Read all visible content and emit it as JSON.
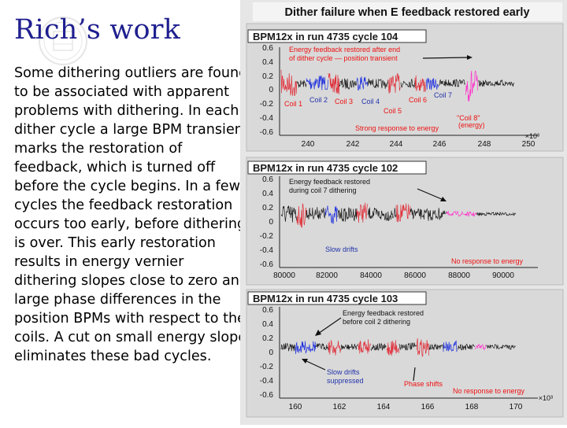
{
  "slide": {
    "title": "Rich’s work",
    "body": "Some dithering outliers are found to be associated with apparent problems with dithering. In each dither cycle a large BPM transient marks the restoration of feedback, which is turned off before the cycle begins. In a few cycles the feedback restoration occurs too early, before dithering is over. This early restoration results in energy vernier dithering slopes close to zero and large phase differences in the position BPMs with respect to the coils. A cut on small energy slope eliminates these bad cycles."
  },
  "figure": {
    "title": "Dither failure when E feedback restored early",
    "colors": {
      "black": "#1a1a1a",
      "red": "#e0303a",
      "blue": "#2233dd",
      "magenta": "#ff33cc",
      "annotation": "#ee1111",
      "annotation_blue": "#2233aa",
      "panel_bg": "#d9d9d9",
      "figure_bg": "#e6e6e6"
    },
    "panels": [
      {
        "title": "BPM12x in run 4735 cycle 104",
        "y_ticks": [
          "0.6",
          "0.4",
          "0.2",
          "0",
          "-0.2",
          "-0.4",
          "-0.6"
        ],
        "x_ticks": [
          "240",
          "242",
          "244",
          "246",
          "248",
          "250"
        ],
        "x_exponent": "×10³",
        "annotations": {
          "main_line1": "Energy feedback restored after end",
          "main_line2": "of dither cycle — position transient",
          "coil1": "Coil 1",
          "coil2": "Coil 2",
          "coil3": "Coil 3",
          "coil4": "Coil 4",
          "coil5": "Coil 5",
          "coil6": "Coil 6",
          "coil7": "Coil 7",
          "coil8_line1": "\"Coil 8\"",
          "coil8_line2": "(energy)",
          "strong": "Strong response to energy"
        }
      },
      {
        "title": "BPM12x in run 4735 cycle 102",
        "y_ticks": [
          "0.6",
          "0.4",
          "0.2",
          "0",
          "-0.2",
          "-0.4",
          "-0.6"
        ],
        "x_ticks": [
          "80000",
          "82000",
          "84000",
          "86000",
          "88000",
          "90000"
        ],
        "annotations": {
          "main_line1": "Energy feedback restored",
          "main_line2": "during coil 7 dithering",
          "slow": "Slow drifts",
          "no_response": "No response to energy"
        }
      },
      {
        "title": "BPM12x in run 4735 cycle 103",
        "y_ticks": [
          "0.6",
          "0.4",
          "0.2",
          "0",
          "-0.2",
          "-0.4",
          "-0.6"
        ],
        "x_ticks": [
          "160",
          "162",
          "164",
          "166",
          "168",
          "170"
        ],
        "x_exponent": "×10³",
        "annotations": {
          "main_line1": "Energy feedback restored",
          "main_line2": "before coil 2 dithering",
          "slow_line1": "Slow drifts",
          "slow_line2": "suppressed",
          "phase": "Phase shifts",
          "no_response": "No response to energy"
        }
      }
    ]
  }
}
